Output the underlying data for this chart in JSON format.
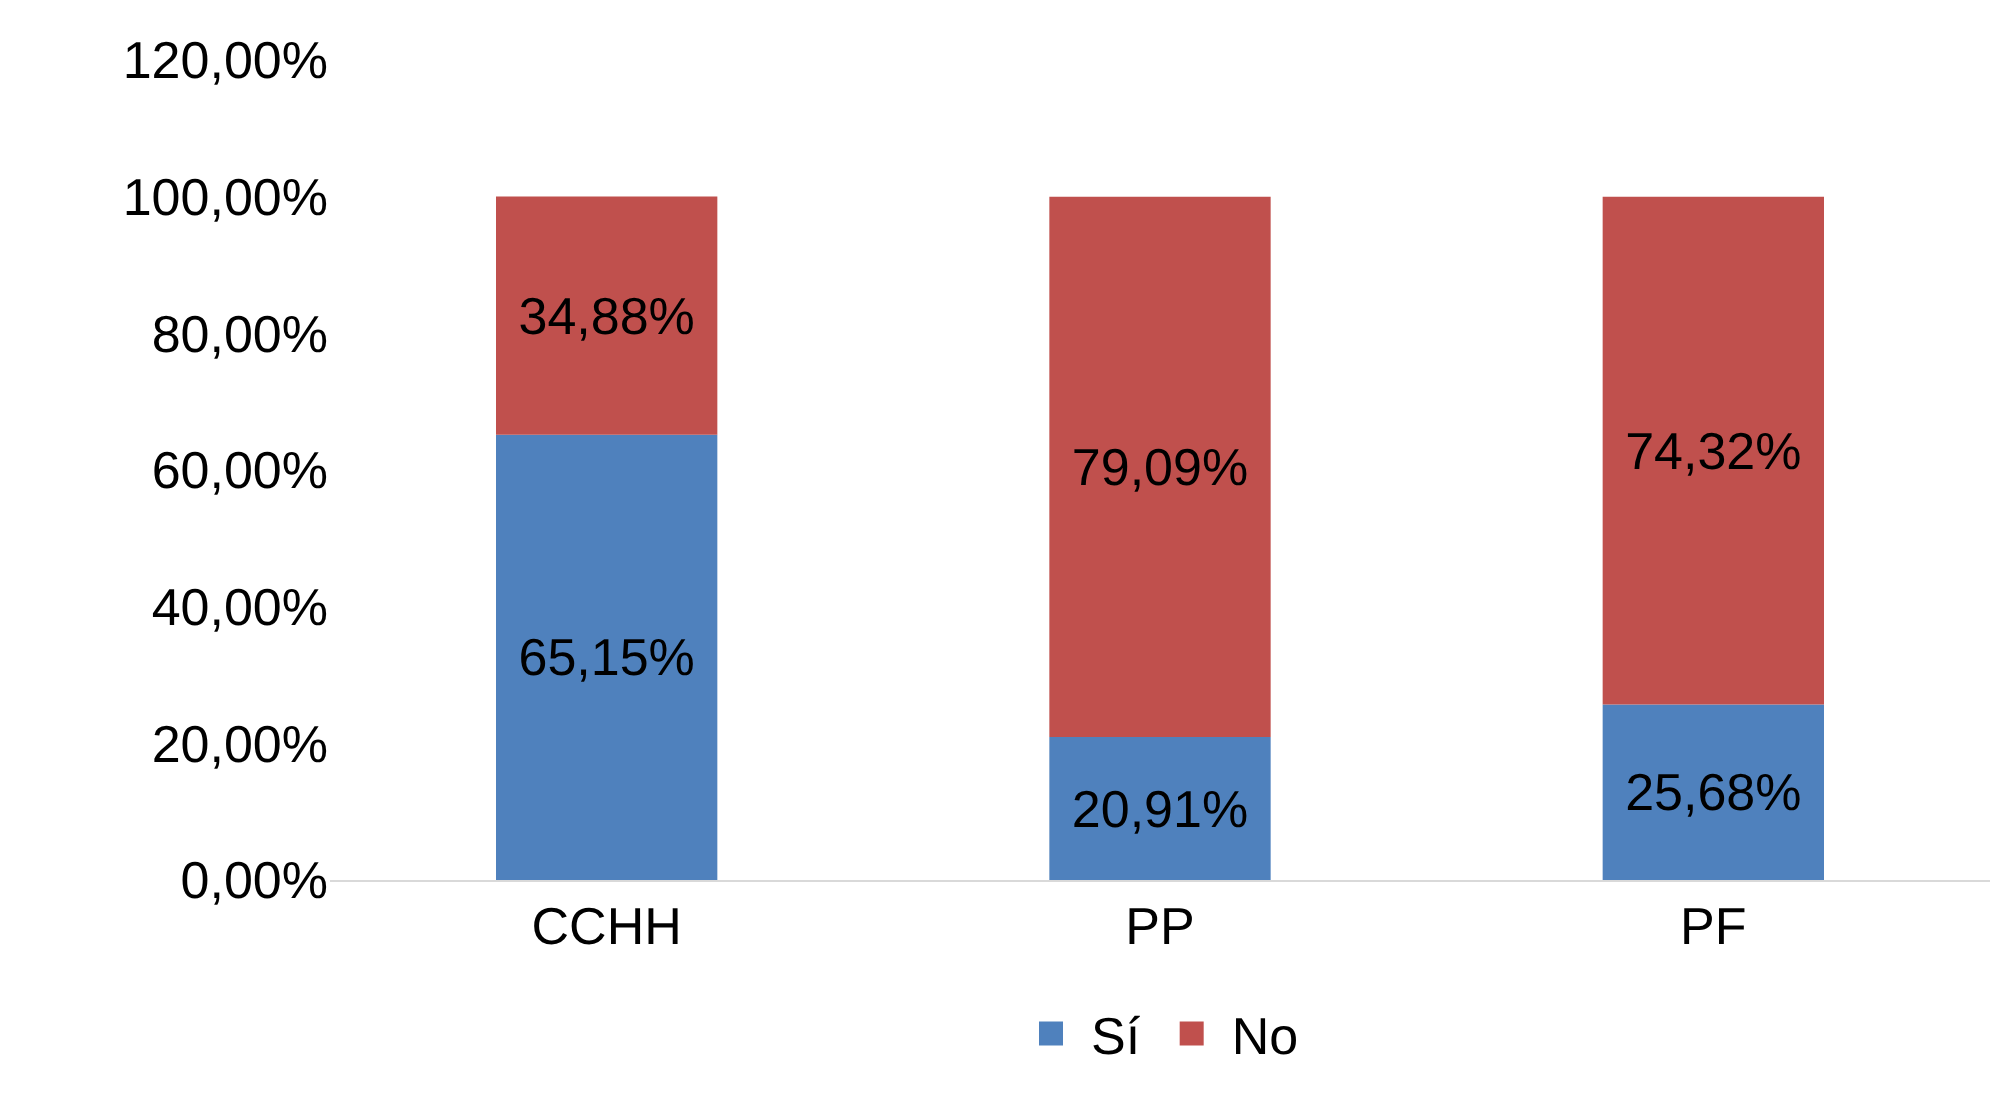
{
  "chart_data": {
    "type": "bar",
    "stacked": true,
    "categories": [
      "CCHH",
      "PP",
      "PF"
    ],
    "series": [
      {
        "name": "Sí",
        "color": "#4f81bd",
        "values": [
          65.15,
          20.91,
          25.68
        ],
        "value_labels": [
          "65,15%",
          "20,91%",
          "25,68%"
        ]
      },
      {
        "name": "No",
        "color": "#c0504d",
        "values": [
          34.88,
          79.09,
          74.32
        ],
        "value_labels": [
          "34,88%",
          "79,09%",
          "74,32%"
        ]
      }
    ],
    "ylim": [
      0,
      120
    ],
    "yticks": [
      {
        "value": 0,
        "label": "0,00%"
      },
      {
        "value": 20,
        "label": "20,00%"
      },
      {
        "value": 40,
        "label": "40,00%"
      },
      {
        "value": 60,
        "label": "60,00%"
      },
      {
        "value": 80,
        "label": "80,00%"
      },
      {
        "value": 100,
        "label": "100,00%"
      },
      {
        "value": 120,
        "label": "120,00%"
      }
    ],
    "grid": false,
    "legend": "bottom"
  }
}
